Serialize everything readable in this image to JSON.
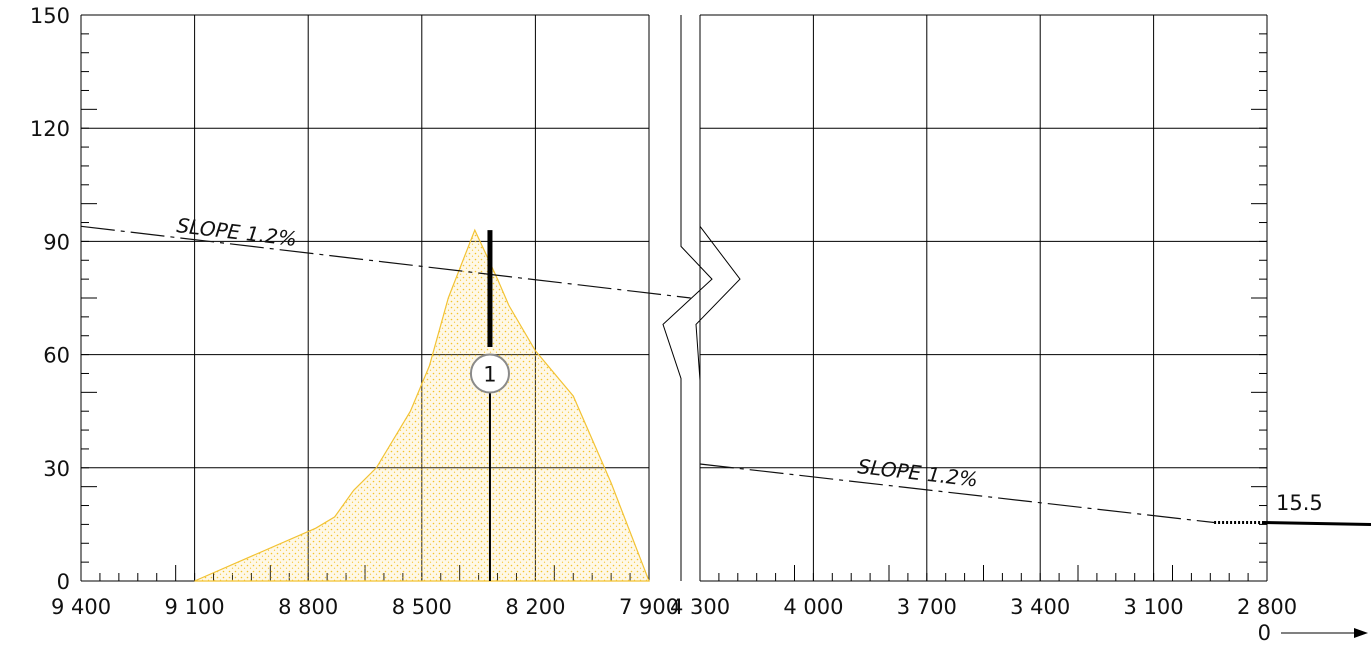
{
  "chart_data": {
    "type": "line",
    "y_axis": {
      "ticks": [
        0,
        30,
        60,
        90,
        120,
        150
      ],
      "range": [
        0,
        150
      ]
    },
    "left_panel": {
      "x_ticks": [
        9400,
        9100,
        8800,
        8500,
        8200,
        7900
      ],
      "x_tick_labels": [
        "9 400",
        "9 100",
        "8 800",
        "8 500",
        "8 200",
        "7 900"
      ],
      "x_range": [
        9400,
        7900
      ],
      "slope_line": [
        {
          "x": 9400,
          "y": 94
        },
        {
          "x": 7790,
          "y": 75
        }
      ],
      "slope_label": "SLOPE 1.2%",
      "peak_profile": [
        {
          "x": 9100,
          "y": 0
        },
        {
          "x": 8780,
          "y": 14
        },
        {
          "x": 8730,
          "y": 17
        },
        {
          "x": 8680,
          "y": 24
        },
        {
          "x": 8620,
          "y": 30
        },
        {
          "x": 8530,
          "y": 45
        },
        {
          "x": 8480,
          "y": 57
        },
        {
          "x": 8430,
          "y": 75
        },
        {
          "x": 8360,
          "y": 93
        },
        {
          "x": 8300,
          "y": 80
        },
        {
          "x": 8270,
          "y": 73
        },
        {
          "x": 8200,
          "y": 61
        },
        {
          "x": 8100,
          "y": 49
        },
        {
          "x": 8000,
          "y": 26
        },
        {
          "x": 7900,
          "y": 0
        }
      ],
      "marker": {
        "x": 8320,
        "y": 55,
        "label": "1"
      }
    },
    "right_panel": {
      "x_ticks": [
        4300,
        4000,
        3700,
        3400,
        3100,
        2800
      ],
      "x_tick_labels": [
        "4 300",
        "4 000",
        "3 700",
        "3 400",
        "3 100",
        "2 800"
      ],
      "x_range": [
        4300,
        2800
      ],
      "slope_line": [
        {
          "x": 4300,
          "y": 31
        },
        {
          "x": 2940,
          "y": 15.5
        }
      ],
      "slope_label": "SLOPE 1.2%",
      "level_label": "15.5",
      "zero_label": "0"
    }
  },
  "colors": {
    "profile_stroke": "#f2c12e",
    "profile_fill": "#f7d77a",
    "grid": "#000000",
    "marker": "#8a8a8a"
  }
}
